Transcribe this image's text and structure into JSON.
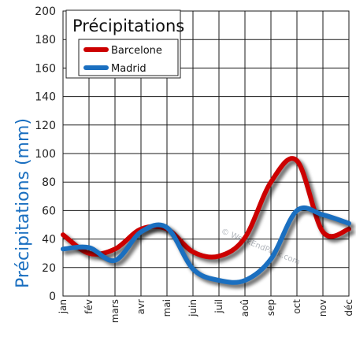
{
  "chart_data": {
    "type": "line",
    "title": "Précipitations",
    "ylabel": "Précipitations (mm)",
    "xlabel": "",
    "categories": [
      "jan",
      "fév",
      "mars",
      "avr",
      "mai",
      "juin",
      "juil",
      "aoû",
      "sep",
      "oct",
      "nov",
      "déc"
    ],
    "ylim": [
      0,
      200
    ],
    "yticks": [
      0,
      20,
      40,
      60,
      80,
      100,
      120,
      140,
      160,
      180,
      200
    ],
    "grid": true,
    "legend_position": "top-left",
    "series": [
      {
        "name": "Barcelone",
        "color": "#cc0000",
        "values": [
          43,
          30,
          33,
          47,
          47,
          31,
          28,
          41,
          80,
          95,
          45,
          47
        ]
      },
      {
        "name": "Madrid",
        "color": "#1a6fc0",
        "values": [
          33,
          34,
          25,
          45,
          48,
          19,
          11,
          11,
          26,
          60,
          57,
          51
        ]
      }
    ]
  },
  "watermark": "© WeekEndPack.com"
}
